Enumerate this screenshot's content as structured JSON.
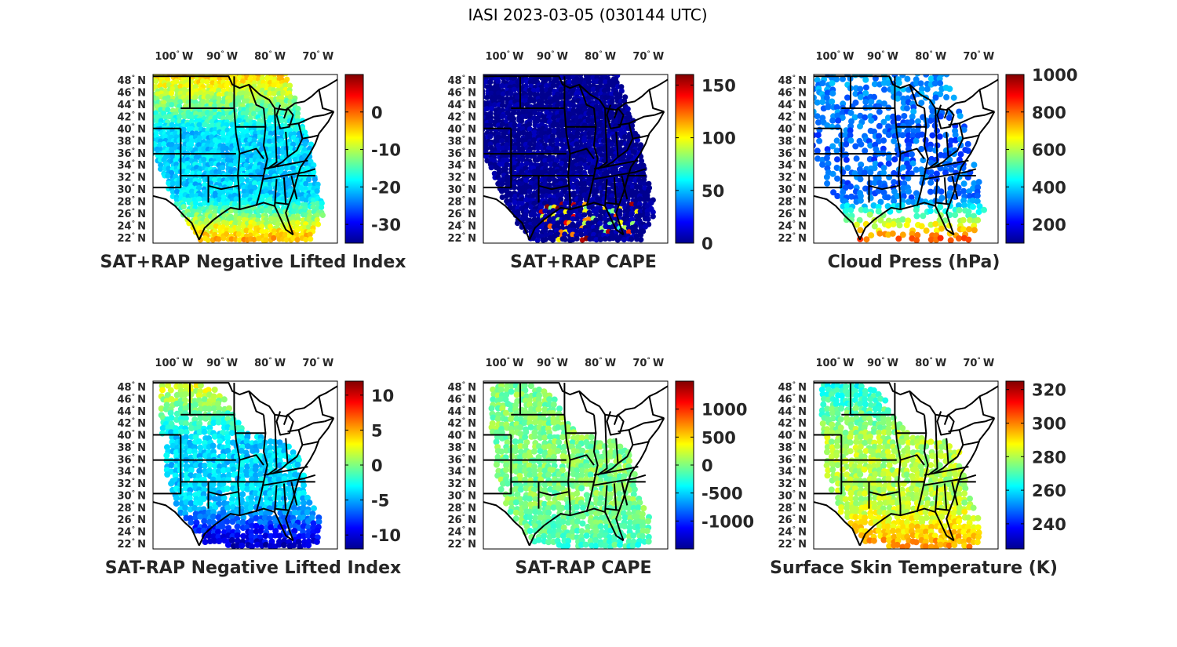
{
  "figure": {
    "title": "IASI 2023-03-05 (030144 UTC)"
  },
  "colormap": [
    "#00008f",
    "#0000ff",
    "#0080ff",
    "#00ffff",
    "#80ff80",
    "#ffff00",
    "#ff8000",
    "#ff0000",
    "#800000"
  ],
  "chart_data": [
    {
      "type": "map",
      "title": "SAT+RAP Negative Lifted Index",
      "lon_ticks": [
        "100",
        "90",
        "80",
        "70"
      ],
      "lon_unit": "W",
      "lat_ticks": [
        "48",
        "46",
        "44",
        "42",
        "40",
        "38",
        "36",
        "34",
        "32",
        "30",
        "28",
        "26",
        "24",
        "22"
      ],
      "lat_unit": "N",
      "colorbar": {
        "range": [
          -35,
          10
        ],
        "ticks": [
          0,
          -10,
          -20,
          -30
        ],
        "tick_labels": [
          "0",
          "-10",
          "-20",
          "-30"
        ]
      },
      "swath": "full",
      "typical_value_by_region": {
        "north": -5,
        "central": -20,
        "south": -2
      }
    },
    {
      "type": "map",
      "title": "SAT+RAP CAPE",
      "lon_ticks": [
        "100",
        "90",
        "80",
        "70"
      ],
      "lon_unit": "W",
      "lat_ticks": [
        "48",
        "46",
        "44",
        "42",
        "40",
        "38",
        "36",
        "34",
        "32",
        "30",
        "28",
        "26",
        "24",
        "22"
      ],
      "lat_unit": "N",
      "colorbar": {
        "range": [
          0,
          160
        ],
        "ticks": [
          150,
          100,
          50,
          0
        ],
        "tick_labels": [
          "150",
          "100",
          "50",
          "0"
        ]
      },
      "swath": "full",
      "typical_value_by_region": {
        "north": 0,
        "central": 0,
        "south": 0,
        "gulf_max": 160
      }
    },
    {
      "type": "map",
      "title": "Cloud Press (hPa)",
      "lon_ticks": [
        "100",
        "90",
        "80",
        "70"
      ],
      "lon_unit": "W",
      "lat_ticks": [
        "48",
        "46",
        "44",
        "42",
        "40",
        "38",
        "36",
        "34",
        "32",
        "30",
        "28",
        "26",
        "24",
        "22"
      ],
      "lat_unit": "N",
      "colorbar": {
        "range": [
          100,
          1000
        ],
        "ticks": [
          1000,
          800,
          600,
          400,
          200
        ],
        "tick_labels": [
          "1000",
          "800",
          "600",
          "400",
          "200"
        ]
      },
      "swath": "scattered",
      "typical_value_by_region": {
        "north": 350,
        "central": 300,
        "south": 850
      }
    },
    {
      "type": "map",
      "title": "SAT-RAP Negative Lifted Index",
      "lon_ticks": [
        "100",
        "90",
        "80",
        "70"
      ],
      "lon_unit": "W",
      "lat_ticks": [
        "48",
        "46",
        "44",
        "42",
        "40",
        "38",
        "36",
        "34",
        "32",
        "30",
        "28",
        "26",
        "24",
        "22"
      ],
      "lat_unit": "N",
      "colorbar": {
        "range": [
          -12,
          12
        ],
        "ticks": [
          10,
          5,
          0,
          -5,
          -10
        ],
        "tick_labels": [
          "10",
          "5",
          "0",
          "-5",
          "-10"
        ]
      },
      "swath": "partial",
      "typical_value_by_region": {
        "north": 3,
        "central": -4,
        "south": -11
      }
    },
    {
      "type": "map",
      "title": "SAT-RAP CAPE",
      "lon_ticks": [
        "100",
        "90",
        "80",
        "70"
      ],
      "lon_unit": "W",
      "lat_ticks": [
        "48",
        "46",
        "44",
        "42",
        "40",
        "38",
        "36",
        "34",
        "32",
        "30",
        "28",
        "26",
        "24",
        "22"
      ],
      "lat_unit": "N",
      "colorbar": {
        "range": [
          -1500,
          1500
        ],
        "ticks": [
          1000,
          500,
          0,
          -500,
          -1000
        ],
        "tick_labels": [
          "1000",
          "500",
          "0",
          "-500",
          "-1000"
        ]
      },
      "swath": "partial",
      "typical_value_by_region": {
        "north": 0,
        "central": 0,
        "south": -200
      }
    },
    {
      "type": "map",
      "title": "Surface Skin Temperature (K)",
      "lon_ticks": [
        "100",
        "90",
        "80",
        "70"
      ],
      "lon_unit": "W",
      "lat_ticks": [
        "48",
        "46",
        "44",
        "42",
        "40",
        "38",
        "36",
        "34",
        "32",
        "30",
        "28",
        "26",
        "24",
        "22"
      ],
      "lat_unit": "N",
      "colorbar": {
        "range": [
          225,
          325
        ],
        "ticks": [
          320,
          300,
          280,
          260,
          240
        ],
        "tick_labels": [
          "320",
          "300",
          "280",
          "260",
          "240"
        ]
      },
      "swath": "partial",
      "typical_value_by_region": {
        "north": 262,
        "central": 280,
        "south": 298
      }
    }
  ]
}
